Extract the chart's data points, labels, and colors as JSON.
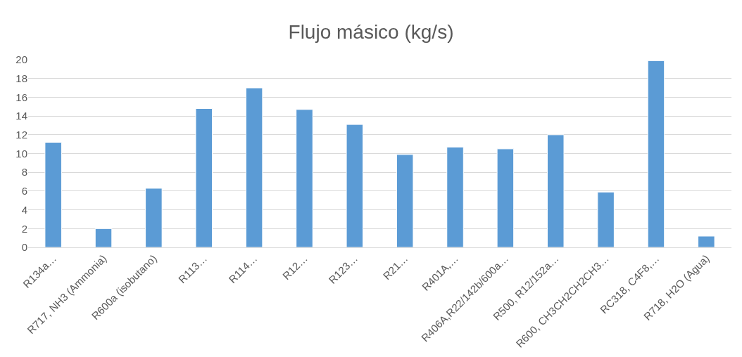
{
  "chart_data": {
    "type": "bar",
    "title": "Flujo másico (kg/s)",
    "categories": [
      "R134a…",
      "R717, NH3 (Ammonia)",
      "R600a (isobutano)",
      "R113…",
      "R114…",
      "R12…",
      "R123…",
      "R21…",
      "R401A,…",
      "R406A,R22/142b/600a…",
      "R500, R12/152a…",
      "R600, CH3CH2CH2CH3…",
      "RC318, C4F8,…",
      "R718, H2O (Agua)"
    ],
    "values": [
      11.2,
      2.0,
      6.3,
      14.8,
      17.0,
      14.7,
      13.1,
      9.9,
      10.7,
      10.5,
      12.0,
      5.9,
      19.9,
      1.2
    ],
    "color": "#5b9bd5",
    "ylim": [
      0,
      20
    ],
    "yticks": [
      0,
      2,
      4,
      6,
      8,
      10,
      12,
      14,
      16,
      18,
      20
    ],
    "grid": "y"
  }
}
